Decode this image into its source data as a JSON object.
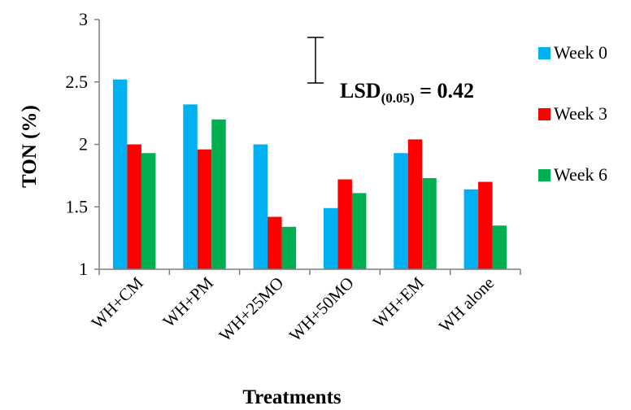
{
  "chart_data": {
    "type": "bar",
    "categories": [
      "WH+CM",
      "WH+PM",
      "WH+25MO",
      "WH+50MO",
      "WH+EM",
      "WH alone"
    ],
    "series": [
      {
        "name": "Week 0",
        "color": "#00B0F0",
        "values": [
          2.52,
          2.32,
          2.0,
          1.49,
          1.93,
          1.64
        ]
      },
      {
        "name": "Week 3",
        "color": "#FF0000",
        "values": [
          2.0,
          1.96,
          1.42,
          1.72,
          2.04,
          1.7
        ]
      },
      {
        "name": "Week 6",
        "color": "#00B050",
        "values": [
          1.93,
          2.2,
          1.34,
          1.61,
          1.73,
          1.35
        ]
      }
    ],
    "xlabel": "Treatments",
    "ylabel": "TON (%)",
    "ylim": [
      1,
      3
    ],
    "yticks": [
      "1",
      "1.5",
      "2",
      "2.5",
      "3"
    ],
    "grid": false,
    "legend_position": "right",
    "annotation": {
      "lsd_main": "LSD",
      "lsd_sub": "(0.05)",
      "lsd_eq": " = 0.42",
      "lsd_value": 0.42
    }
  }
}
